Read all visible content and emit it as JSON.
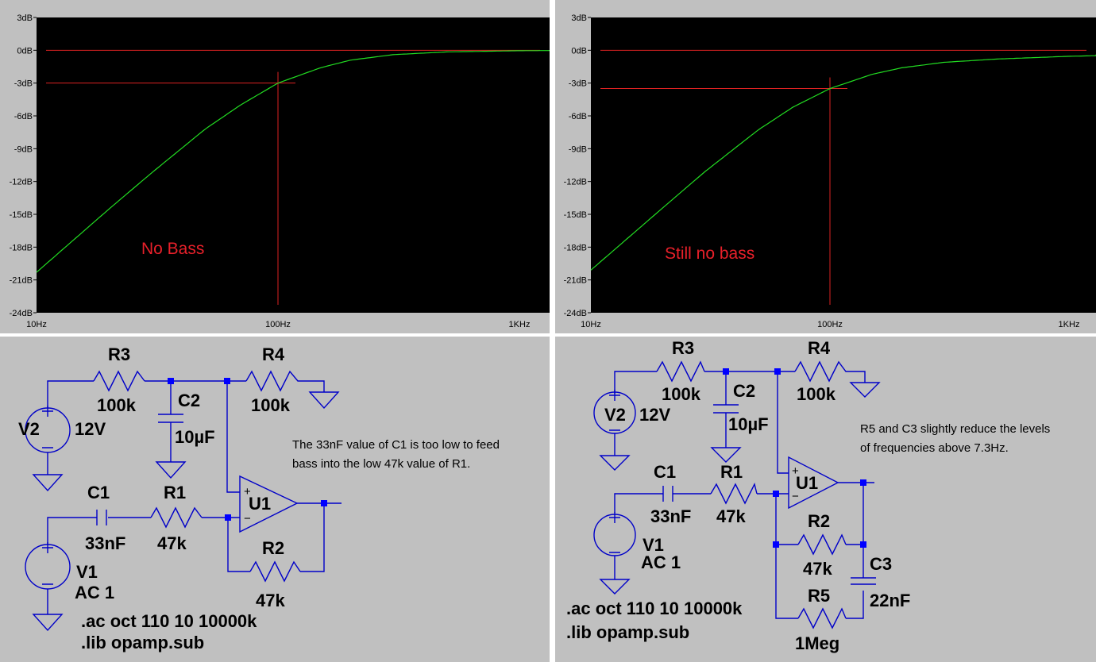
{
  "plots": [
    {
      "y_tick_labels": [
        "3dB",
        "0dB",
        "-3dB",
        "-6dB",
        "-9dB",
        "-12dB",
        "-15dB",
        "-18dB",
        "-21dB",
        "-24dB"
      ],
      "x_tick_labels": [
        "10Hz",
        "100Hz",
        "1KHz"
      ],
      "annotation": "No Bass",
      "colors": {
        "trace": "#22dd22",
        "cursor": "#dd2222",
        "background": "#000000"
      }
    },
    {
      "y_tick_labels": [
        "3dB",
        "0dB",
        "-3dB",
        "-6dB",
        "-9dB",
        "-12dB",
        "-15dB",
        "-18dB",
        "-21dB",
        "-24dB"
      ],
      "x_tick_labels": [
        "10Hz",
        "100Hz",
        "1KHz"
      ],
      "annotation": "Still no bass",
      "colors": {
        "trace": "#22dd22",
        "cursor": "#dd2222",
        "background": "#000000"
      }
    }
  ],
  "chart_data": [
    {
      "type": "line",
      "x": [
        10,
        20,
        30,
        50,
        70,
        100,
        150,
        200,
        300,
        500,
        1000,
        2000
      ],
      "series": [
        {
          "values": [
            -20.3,
            -14.5,
            -11.2,
            -7.2,
            -5.0,
            -3.0,
            -1.6,
            -0.9,
            -0.4,
            -0.15,
            -0.04,
            0
          ]
        }
      ],
      "xscale": "log",
      "xlim": [
        10,
        2200
      ],
      "ylim": [
        -24,
        3
      ],
      "cursors": {
        "x": 100,
        "y": -3
      },
      "grid": false
    },
    {
      "type": "line",
      "x": [
        10,
        20,
        30,
        50,
        70,
        100,
        150,
        200,
        300,
        500,
        1000,
        2000
      ],
      "series": [
        {
          "values": [
            -20.1,
            -14.4,
            -11.1,
            -7.3,
            -5.2,
            -3.5,
            -2.2,
            -1.6,
            -1.1,
            -0.8,
            -0.55,
            -0.4
          ]
        }
      ],
      "xscale": "log",
      "xlim": [
        10,
        2200
      ],
      "ylim": [
        -24,
        3
      ],
      "cursors": {
        "x": 100,
        "y": -3.5
      },
      "grid": false
    }
  ],
  "schematic1": {
    "r3": "R3",
    "r3_val": "100k",
    "r4": "R4",
    "r4_val": "100k",
    "c2": "C2",
    "c2_val": "10µF",
    "v2": "V2",
    "v2_val": "12V",
    "c1": "C1",
    "c1_val": "33nF",
    "r1": "R1",
    "r1_val": "47k",
    "u1": "U1",
    "r2": "R2",
    "r2_val": "47k",
    "v1": "V1",
    "v1_val": "AC 1",
    "directive1": ".ac oct 110 10 10000k",
    "directive2": ".lib opamp.sub",
    "note1": "The 33nF value of C1 is too low to feed",
    "note2": "bass into the low 47k value of R1."
  },
  "schematic2": {
    "r3": "R3",
    "r3_val": "100k",
    "r4": "R4",
    "r4_val": "100k",
    "c2": "C2",
    "c2_val": "10µF",
    "v2": "V2",
    "v2_val": "12V",
    "c1": "C1",
    "c1_val": "33nF",
    "r1": "R1",
    "r1_val": "47k",
    "u1": "U1",
    "r2": "R2",
    "r2_val": "47k",
    "c3": "C3",
    "c3_val": "22nF",
    "r5": "R5",
    "r5_val": "1Meg",
    "v1": "V1",
    "v1_val": "AC 1",
    "directive1": ".ac oct 110 10 10000k",
    "directive2": ".lib opamp.sub",
    "note1": "R5 and C3 slightly reduce the levels",
    "note2": "of frequencies above 7.3Hz."
  }
}
